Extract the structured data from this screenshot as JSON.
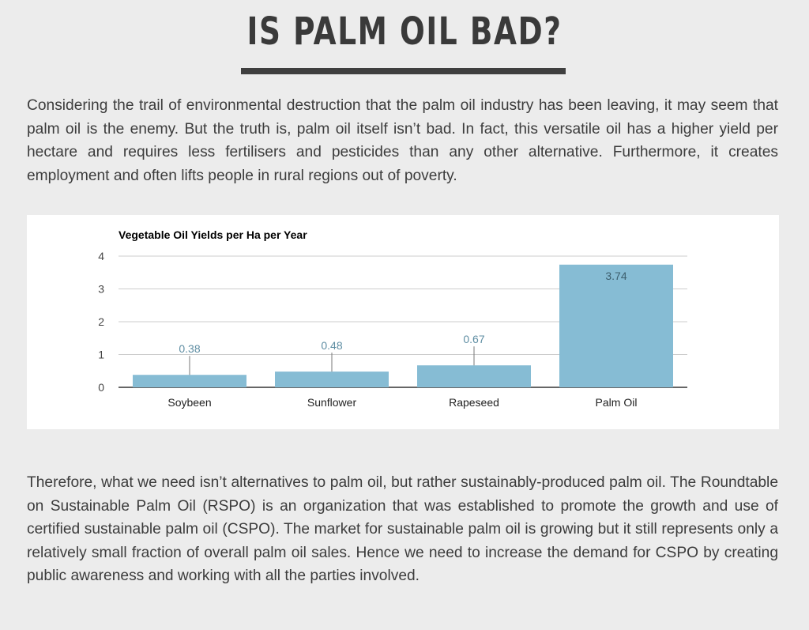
{
  "heading": "IS PALM OIL BAD?",
  "paragraphs": [
    "Considering the trail of environmental destruction that the palm oil industry has been leaving, it may seem that palm oil is the enemy. But the truth is, palm oil itself isn’t bad. In fact, this versatile oil has a higher yield per hectare and requires less fertilisers and pesticides than any other alternative. Furthermore, it creates employment and often lifts people in rural regions out of poverty.",
    "Therefore, what we need isn’t alternatives to palm oil, but rather sustainably-produced palm oil. The Roundtable on Sustainable Palm Oil (RSPO) is an organization that was established to promote the growth and use of certified sustainable palm oil (CSPO). The market for sustainable palm oil is growing but it still represents only a relatively small fraction of overall palm oil sales. Hence we need to increase the demand for CSPO by creating public awareness and working with all the parties involved."
  ],
  "colors": {
    "background": "#ececec",
    "heading": "#3a3a3a",
    "bar": "#86bcd4",
    "data_label": "#5f8ea3"
  },
  "chart_data": {
    "type": "bar",
    "title": "Vegetable Oil Yields per Ha per Year",
    "categories": [
      "Soybeen",
      "Sunflower",
      "Rapeseed",
      "Palm Oil"
    ],
    "values": [
      0.38,
      0.48,
      0.67,
      3.74
    ],
    "data_labels": [
      "0.38",
      "0.48",
      "0.67",
      "3.74"
    ],
    "xlabel": "",
    "ylabel": "",
    "ylim": [
      0,
      4
    ],
    "yticks": [
      0,
      1,
      2,
      3,
      4
    ],
    "grid": true,
    "legend": "none"
  }
}
